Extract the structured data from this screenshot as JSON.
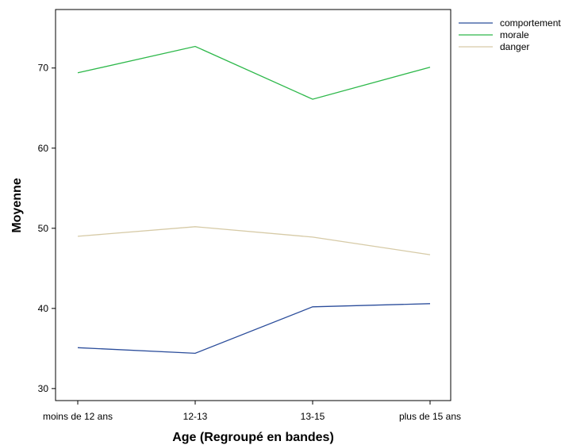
{
  "chart_data": {
    "type": "line",
    "xlabel": "Age (Regroupé en bandes)",
    "ylabel": "Moyenne",
    "categories": [
      "moins de 12 ans",
      "12-13",
      "13-15",
      "plus de 15 ans"
    ],
    "ylim": [
      28.5,
      77.3
    ],
    "yticks": [
      30,
      40,
      50,
      60,
      70
    ],
    "grid": false,
    "legend_position": "top-right, outside plot",
    "series": [
      {
        "name": "comportement",
        "color": "#2b4d9b",
        "values": [
          35.1,
          34.4,
          40.2,
          40.6
        ]
      },
      {
        "name": "morale",
        "color": "#2db84a",
        "values": [
          69.4,
          72.7,
          66.1,
          70.1
        ]
      },
      {
        "name": "danger",
        "color": "#d6caa6",
        "values": [
          49.0,
          50.2,
          48.9,
          46.7
        ]
      }
    ]
  }
}
